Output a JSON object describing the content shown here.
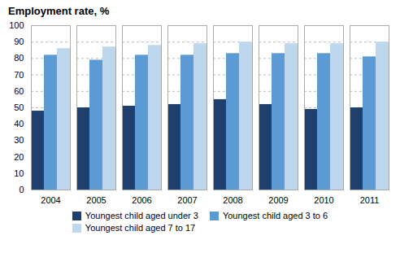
{
  "chart_data": {
    "type": "bar",
    "title": "Employment rate, %",
    "categories": [
      "2004",
      "2005",
      "2006",
      "2007",
      "2008",
      "2009",
      "2010",
      "2011"
    ],
    "series": [
      {
        "name": "Youngest child aged under 3",
        "color": "#1f3f6e",
        "values": [
          48,
          50,
          51,
          52,
          55,
          52,
          49,
          50
        ]
      },
      {
        "name": "Youngest child aged 3 to 6",
        "color": "#5b9bd5",
        "values": [
          82,
          79,
          82,
          82,
          83,
          83,
          83,
          81
        ]
      },
      {
        "name": "Youngest child aged 7 to 17",
        "color": "#bdd7ee",
        "values": [
          86,
          87,
          88,
          89,
          90,
          89,
          89,
          90
        ]
      }
    ],
    "ylim": [
      0,
      100
    ],
    "yticks": [
      0,
      10,
      20,
      30,
      40,
      50,
      60,
      70,
      80,
      90,
      100
    ],
    "grid": true,
    "legend": "bottom"
  }
}
